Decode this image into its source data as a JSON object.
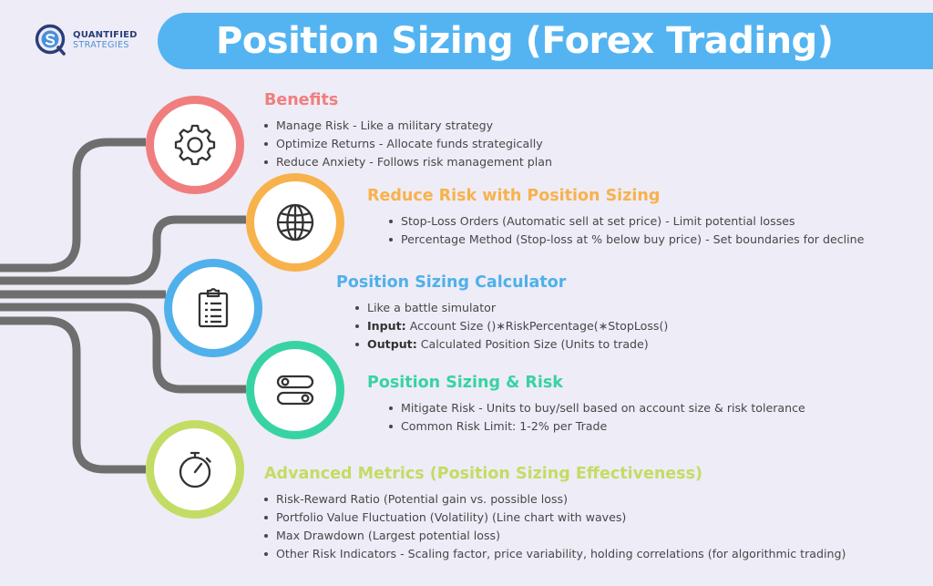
{
  "logo": {
    "line1": "QUANTIFIED",
    "line2": "STRATEGIES",
    "icon": "quantified-strategies-logo"
  },
  "title": "Position Sizing (Forex Trading)",
  "colors": {
    "background": "#eeecf6",
    "title_bar": "#54b4f2",
    "connector": "#6e6e6e",
    "benefits": "#f07e7e",
    "reduce_risk": "#f8b24c",
    "calculator": "#4fb0ec",
    "sizing_risk": "#38d3a3",
    "advanced": "#c3dc64"
  },
  "sections": [
    {
      "id": "benefits",
      "heading": "Benefits",
      "icon": "gear-icon",
      "items": [
        "Manage Risk - Like a military strategy",
        "Optimize Returns - Allocate funds strategically",
        "Reduce Anxiety - Follows risk management plan"
      ]
    },
    {
      "id": "reduce-risk",
      "heading": "Reduce Risk with Position Sizing",
      "icon": "globe-icon",
      "items": [
        "Stop-Loss Orders (Automatic sell at set price) - Limit potential losses",
        "Percentage Method (Stop-loss at % below buy price) - Set boundaries for decline"
      ]
    },
    {
      "id": "calculator",
      "heading": "Position Sizing Calculator",
      "icon": "clipboard-icon",
      "items": [
        {
          "label": "",
          "text": "Like a battle simulator"
        },
        {
          "label": "Input:",
          "text": " Account Size ()∗RiskPercentage(∗StopLoss()"
        },
        {
          "label": "Output:",
          "text": " Calculated Position Size (Units to trade)"
        }
      ]
    },
    {
      "id": "sizing-risk",
      "heading": "Position Sizing & Risk",
      "icon": "toggle-switches-icon",
      "items": [
        "Mitigate Risk - Units to buy/sell based on account size & risk tolerance",
        "Common Risk Limit: 1-2% per Trade"
      ]
    },
    {
      "id": "advanced",
      "heading": "Advanced Metrics (Position Sizing Effectiveness)",
      "icon": "stopwatch-icon",
      "items": [
        "Risk-Reward Ratio (Potential gain vs. possible loss)",
        "Portfolio Value Fluctuation (Volatility) (Line chart with waves)",
        "Max Drawdown (Largest potential loss)",
        "Other Risk Indicators - Scaling factor, price variability, holding correlations (for algorithmic trading)"
      ]
    }
  ]
}
